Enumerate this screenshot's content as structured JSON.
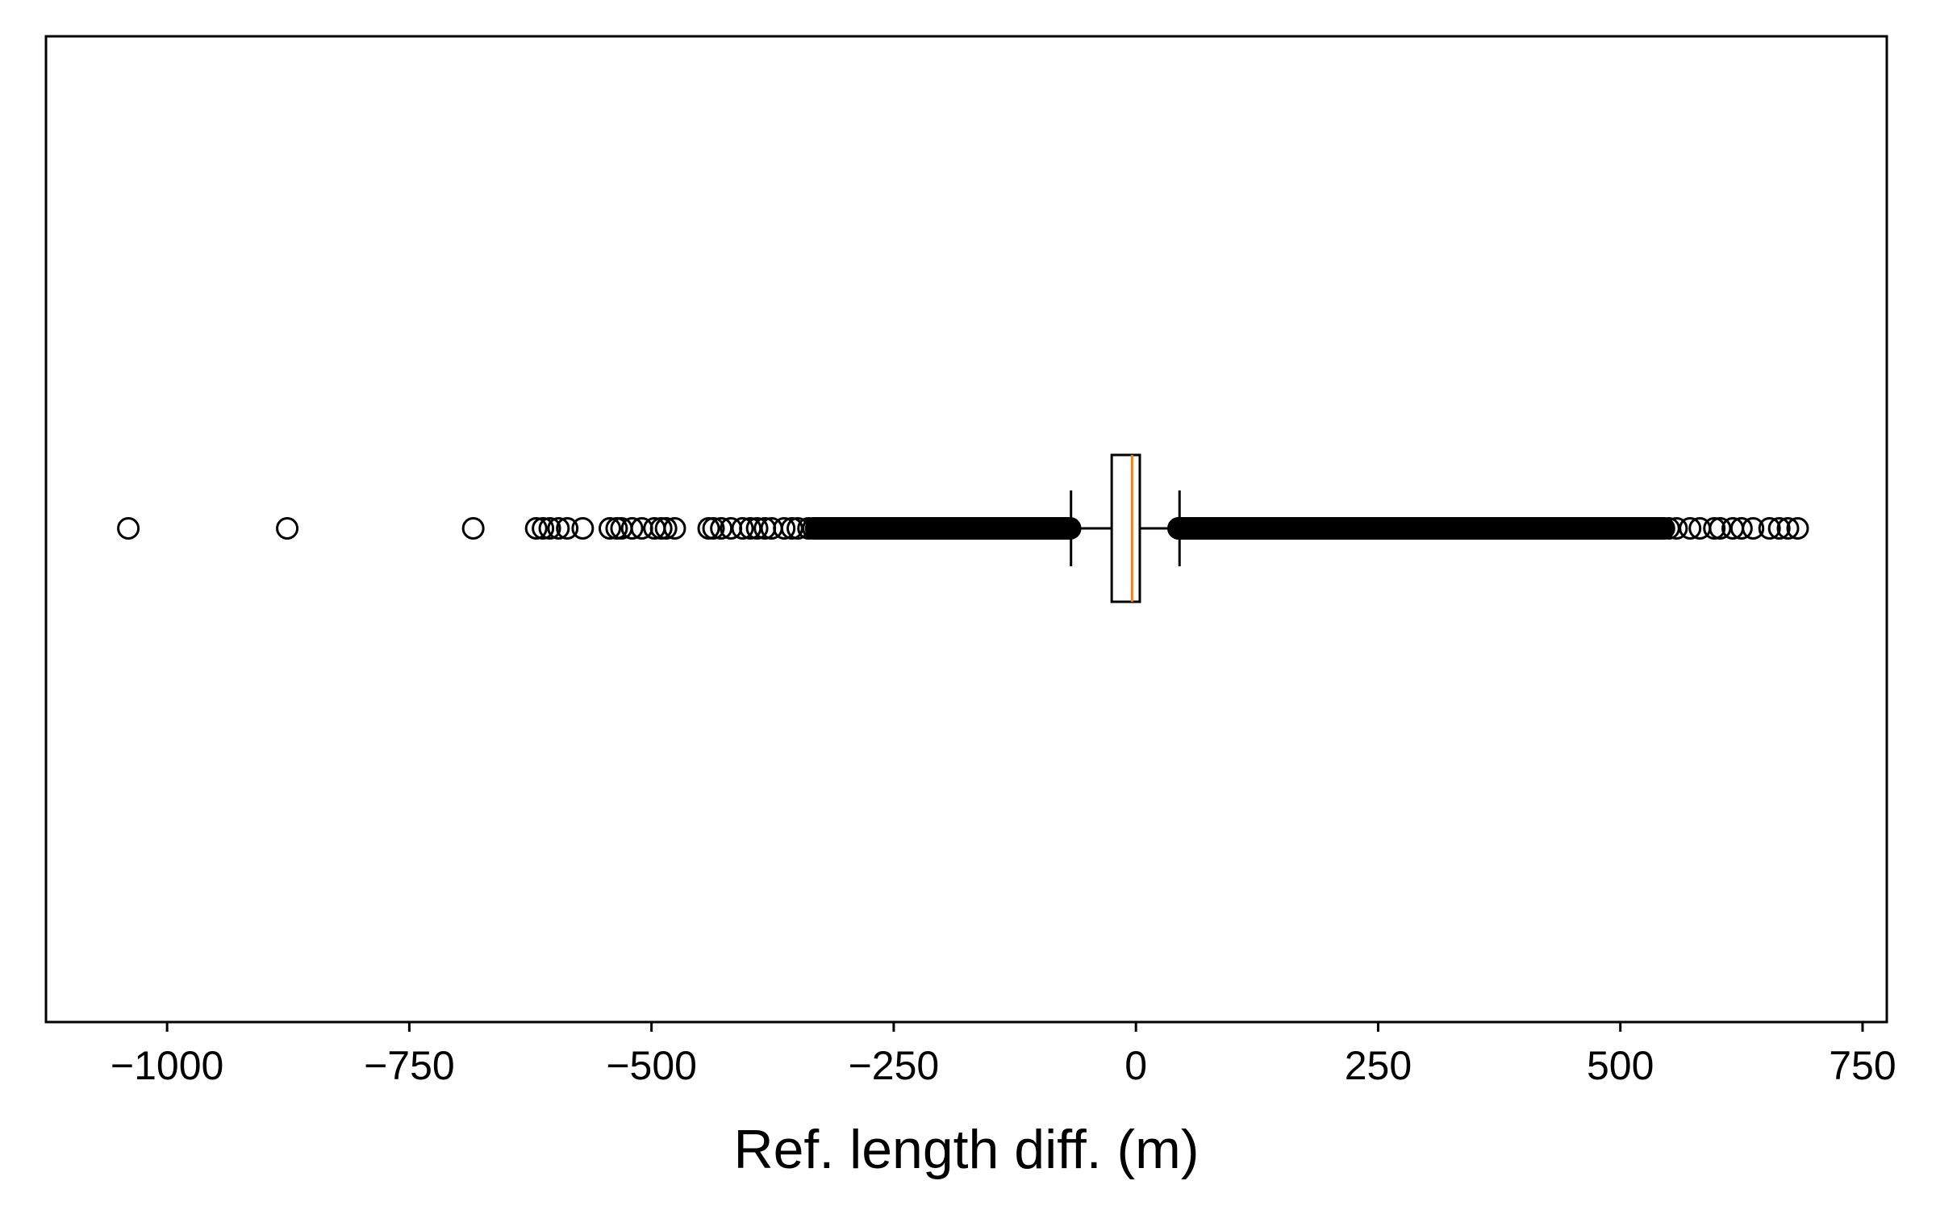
{
  "chart_data": {
    "type": "boxplot",
    "orientation": "horizontal",
    "title": "",
    "xlabel": "Ref. length diff. (m)",
    "ylabel": "",
    "xlim": [
      -1125,
      775
    ],
    "xticks": [
      -1000,
      -750,
      -500,
      -250,
      0,
      250,
      500,
      750
    ],
    "xtick_labels": [
      "−1000",
      "−750",
      "−500",
      "−250",
      "0",
      "250",
      "500",
      "750"
    ],
    "grid": false,
    "legend": false,
    "box": {
      "whisker_low": -67,
      "q1": -25,
      "median": -4,
      "q3": 4,
      "whisker_high": 45
    },
    "outliers_discrete": [
      -1040,
      -876,
      -684,
      -619,
      -612,
      -605,
      -596,
      -587,
      -571,
      -543,
      -536,
      -531,
      -520,
      -510,
      -497,
      -490,
      -485,
      -476,
      -441,
      -436,
      -428,
      -418,
      -406,
      -398,
      -391,
      -383,
      -376,
      -363,
      -355,
      -349,
      -338,
      -333
    ],
    "outliers_dense_ranges": [
      [
        -330,
        -68
      ],
      [
        44,
        545
      ]
    ],
    "outliers_discrete_high": [
      550,
      558,
      572,
      582,
      597,
      603,
      616,
      625,
      637,
      654,
      664,
      673,
      683
    ],
    "colors": {
      "median": "#ff7f0e",
      "box": "#000000",
      "outlier": "#000000",
      "axes": "#000000",
      "background": "#ffffff"
    }
  }
}
